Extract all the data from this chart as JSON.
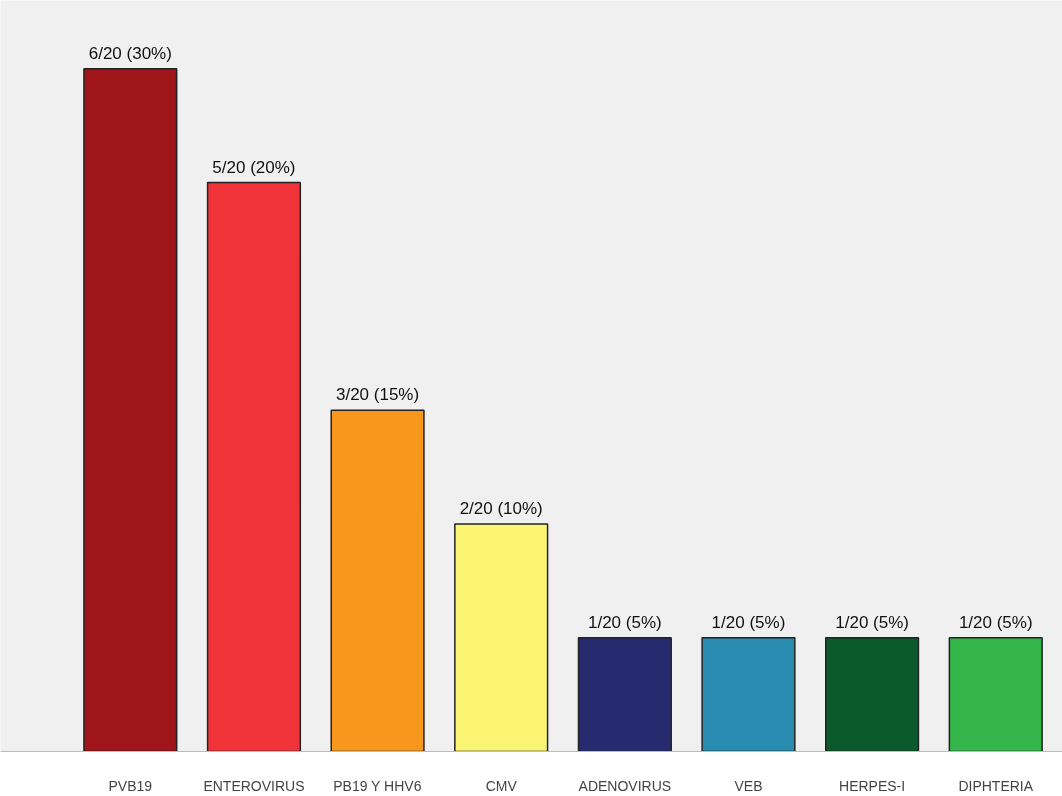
{
  "chart_data": {
    "type": "bar",
    "categories": [
      "PVB19",
      "ENTEROVIRUS",
      "PB19 Y HHV6",
      "CMV",
      "ADENOVIRUS",
      "VEB",
      "HERPES-I",
      "DIPHTERIA"
    ],
    "values": [
      6,
      5,
      3,
      2,
      1,
      1,
      1,
      1
    ],
    "value_labels": [
      "6/20 (30%)",
      "5/20 (20%)",
      "3/20 (15%)",
      "2/20 (10%)",
      "1/20 (5%)",
      "1/20 (5%)",
      "1/20 (5%)",
      "1/20 (5%)"
    ],
    "colors": [
      "#a0151a",
      "#ef3338",
      "#f7981d",
      "#faf472",
      "#262a6f",
      "#2a8bb0",
      "#0b5a2c",
      "#34b64a"
    ]
  }
}
